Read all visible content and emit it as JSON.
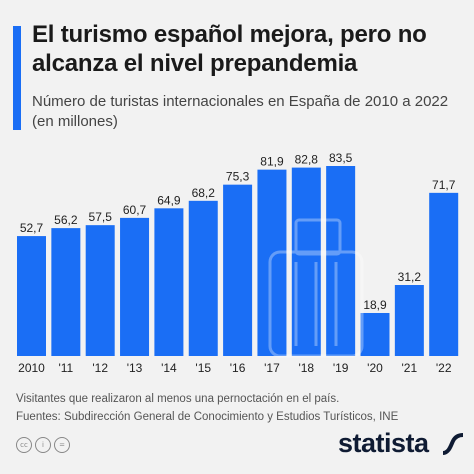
{
  "header": {
    "title": "El turismo español mejora, pero no alcanza el nivel prepandemia",
    "subtitle": "Número de turistas internacionales en España de 2010 a 2022 (en millones)"
  },
  "chart_data": {
    "type": "bar",
    "title": "El turismo español mejora, pero no alcanza el nivel prepandemia",
    "subtitle": "Número de turistas internacionales en España de 2010 a 2022 (en millones)",
    "categories": [
      "2010",
      "'11",
      "'12",
      "'13",
      "'14",
      "'15",
      "'16",
      "'17",
      "'18",
      "'19",
      "'20",
      "'21",
      "'22"
    ],
    "values": [
      52.7,
      56.2,
      57.5,
      60.7,
      64.9,
      68.2,
      75.3,
      81.9,
      82.8,
      83.5,
      18.9,
      31.2,
      71.7
    ],
    "value_labels": [
      "52,7",
      "56,2",
      "57,5",
      "60,7",
      "64,9",
      "68,2",
      "75,3",
      "81,9",
      "82,8",
      "83,5",
      "18,9",
      "31,2",
      "71,7"
    ],
    "ylim": [
      0,
      83.5
    ],
    "grid": false,
    "bar_color": "#1a6ef5",
    "background_icon": "suitcase-icon"
  },
  "footer": {
    "note": "Visitantes que realizaron al menos una pernoctación en el país.",
    "sources": "Fuentes: Subdirección General de Conocimiento y Estudios Turísticos, INE",
    "license_icons": [
      "cc",
      "i",
      "="
    ],
    "brand": "statista"
  }
}
